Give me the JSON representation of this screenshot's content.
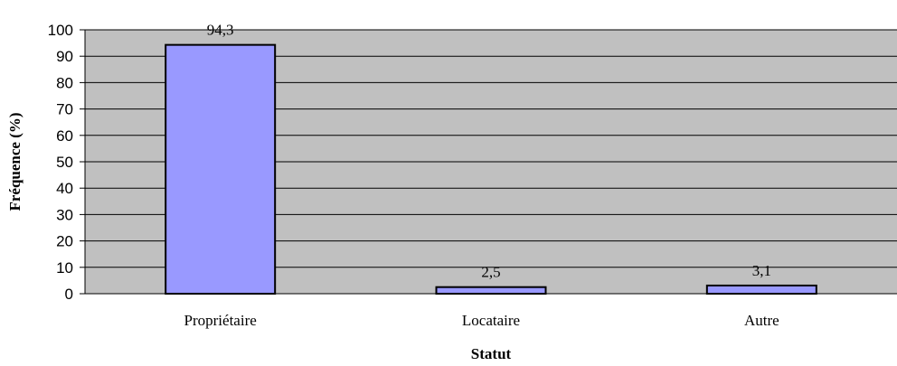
{
  "chart_data": {
    "type": "bar",
    "categories": [
      "Propriétaire",
      "Locataire",
      "Autre"
    ],
    "values": [
      94.3,
      2.5,
      3.1
    ],
    "value_labels": [
      "94,3",
      "2,5",
      "3,1"
    ],
    "xlabel": "Statut",
    "ylabel": "Fréquence (%)",
    "ylim": [
      0,
      100
    ],
    "yticks": [
      0,
      10,
      20,
      30,
      40,
      50,
      60,
      70,
      80,
      90,
      100
    ],
    "grid": true,
    "legend": "none",
    "colors": {
      "plot_background": "#c0c0c0",
      "bar_fill": "#9999ff",
      "bar_stroke": "#000000",
      "gridline": "#000000"
    }
  }
}
